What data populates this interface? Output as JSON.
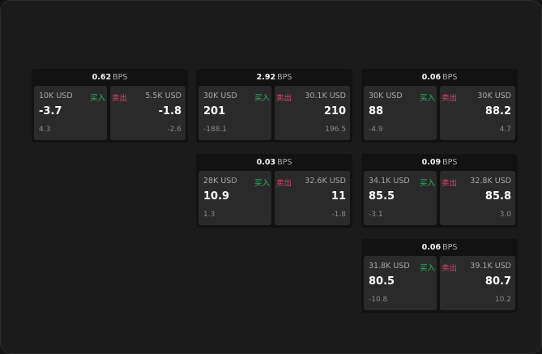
{
  "unit": "BPS",
  "buy_label": "买入",
  "sell_label": "卖出",
  "colors": {
    "buy": "#2fb36a",
    "sell": "#e0436b",
    "background": "#1b1b1b"
  },
  "cards": [
    {
      "spread": "0.62",
      "buy": {
        "qty": "10K USD",
        "price": "-3.7",
        "change": "4.3"
      },
      "sell": {
        "qty": "5.5K USD",
        "price": "-1.8",
        "change": "-2.6"
      }
    },
    {
      "spread": "2.92",
      "buy": {
        "qty": "30K USD",
        "price": "201",
        "change": "-188.1"
      },
      "sell": {
        "qty": "30.1K USD",
        "price": "210",
        "change": "196.5"
      }
    },
    {
      "spread": "0.06",
      "buy": {
        "qty": "30K USD",
        "price": "88",
        "change": "-4.9"
      },
      "sell": {
        "qty": "30K USD",
        "price": "88.2",
        "change": "4.7"
      }
    },
    {
      "spread": "0.03",
      "buy": {
        "qty": "28K USD",
        "price": "10.9",
        "change": "1.3"
      },
      "sell": {
        "qty": "32.6K USD",
        "price": "11",
        "change": "-1.8"
      }
    },
    {
      "spread": "0.09",
      "buy": {
        "qty": "34.1K USD",
        "price": "85.5",
        "change": "-3.1"
      },
      "sell": {
        "qty": "32.8K USD",
        "price": "85.8",
        "change": "3.0"
      }
    },
    {
      "spread": "0.06",
      "buy": {
        "qty": "31.8K USD",
        "price": "80.5",
        "change": "-10.8"
      },
      "sell": {
        "qty": "39.1K USD",
        "price": "80.7",
        "change": "10.2"
      }
    }
  ]
}
